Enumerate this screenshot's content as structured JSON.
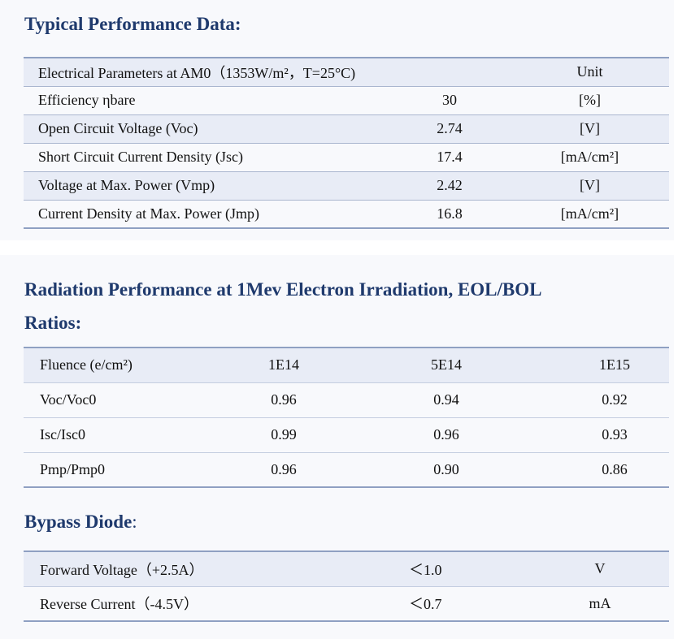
{
  "typical": {
    "title": "Typical Performance Data:",
    "header": {
      "param": "Electrical Parameters at AM0（1353W/m²，T=25°C)",
      "value": "",
      "unit": "Unit"
    },
    "rows": [
      {
        "param": "Efficiency ηbare",
        "value": "30",
        "unit": "[%]"
      },
      {
        "param": "Open Circuit Voltage (Voc)",
        "value": "2.74",
        "unit": "[V]"
      },
      {
        "param": "Short Circuit Current Density (Jsc)",
        "value": "17.4",
        "unit": "[mA/cm²]"
      },
      {
        "param": "Voltage at Max. Power (Vmp)",
        "value": "2.42",
        "unit": "[V]"
      },
      {
        "param": "Current Density at Max. Power (Jmp)",
        "value": "16.8",
        "unit": "[mA/cm²]"
      }
    ]
  },
  "radiation": {
    "title_line1": "Radiation Performance at 1Mev Electron Irradiation, EOL/BOL",
    "title_line2": "Ratios:",
    "header": {
      "label": "Fluence (e/cm²)",
      "c1": "1E14",
      "c2": "5E14",
      "c3": "1E15"
    },
    "rows": [
      {
        "label": "Voc/Voc0",
        "c1": "0.96",
        "c2": "0.94",
        "c3": "0.92"
      },
      {
        "label": "Isc/Isc0",
        "c1": "0.99",
        "c2": "0.96",
        "c3": "0.93"
      },
      {
        "label": "Pmp/Pmp0",
        "c1": "0.96",
        "c2": "0.90",
        "c3": "0.86"
      }
    ]
  },
  "bypass": {
    "title": "Bypass Diode",
    "title_suffix": ":",
    "rows": [
      {
        "param": "Forward Voltage（+2.5A）",
        "value": "＜1.0",
        "unit": "V"
      },
      {
        "param": "Reverse Current（-4.5V）",
        "value": "＜0.7",
        "unit": "mA"
      }
    ]
  }
}
